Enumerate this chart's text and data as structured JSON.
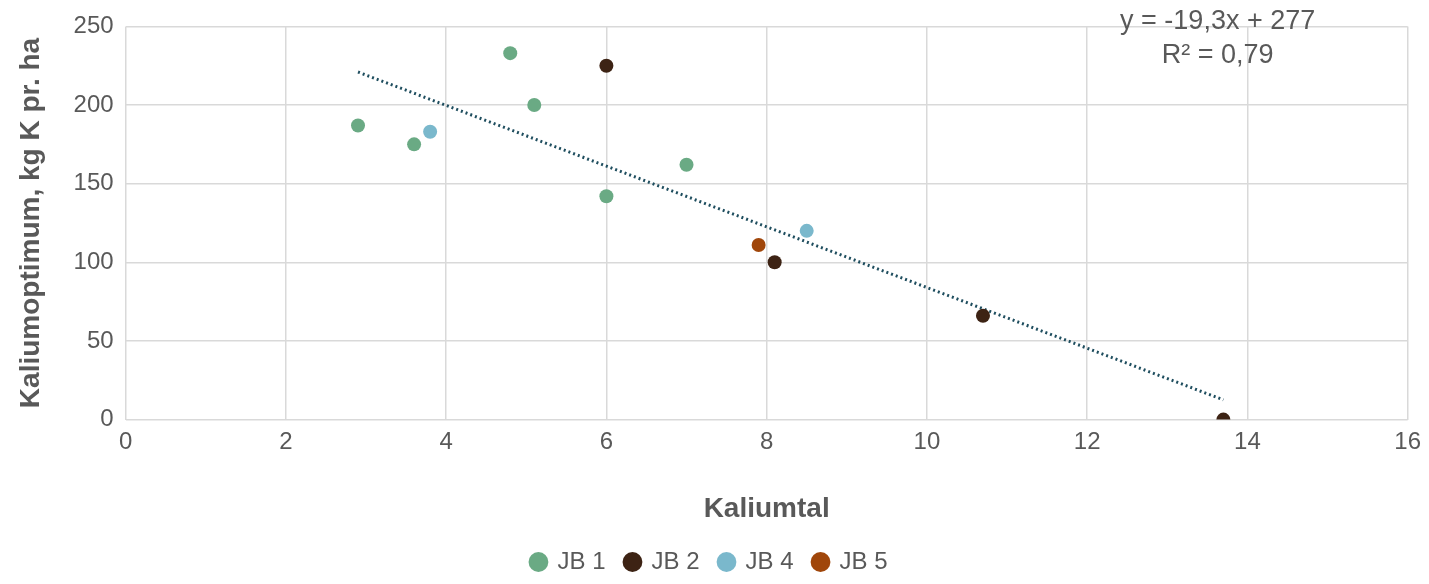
{
  "chart_data": {
    "type": "scatter",
    "xlabel": "Kaliumtal",
    "ylabel": "Kaliumoptimum, kg K pr. ha",
    "xlim": [
      0,
      16
    ],
    "xticks": [
      0,
      2,
      4,
      6,
      8,
      10,
      12,
      14,
      16
    ],
    "ylim": [
      0,
      250
    ],
    "yticks": [
      0,
      50,
      100,
      150,
      200,
      250
    ],
    "grid": true,
    "legend": "bottom",
    "marker": "circle",
    "series": [
      {
        "name": "JB 1",
        "color": "#6aaa84",
        "x": [
          2.9,
          3.6,
          4.8,
          5.1,
          6.0,
          7.0
        ],
        "values": [
          187,
          175,
          233,
          200,
          142,
          162
        ]
      },
      {
        "name": "JB 2",
        "color": "#3d2314",
        "x": [
          6.0,
          8.1,
          10.7,
          13.7
        ],
        "values": [
          225,
          100,
          66,
          0
        ]
      },
      {
        "name": "JB 4",
        "color": "#7ab8cc",
        "x": [
          3.8,
          8.5
        ],
        "values": [
          183,
          120
        ]
      },
      {
        "name": "JB 5",
        "color": "#a0460a",
        "x": [
          7.9
        ],
        "values": [
          111
        ]
      },
      {
        "type": "line",
        "color": "#1f4e5f",
        "line_style": "dotted",
        "marker": "none",
        "x": [
          2.9,
          13.7
        ],
        "values": [
          221,
          12.6
        ]
      }
    ],
    "annotations": [
      "y = -19,3x + 277",
      "R² = 0,79"
    ]
  }
}
